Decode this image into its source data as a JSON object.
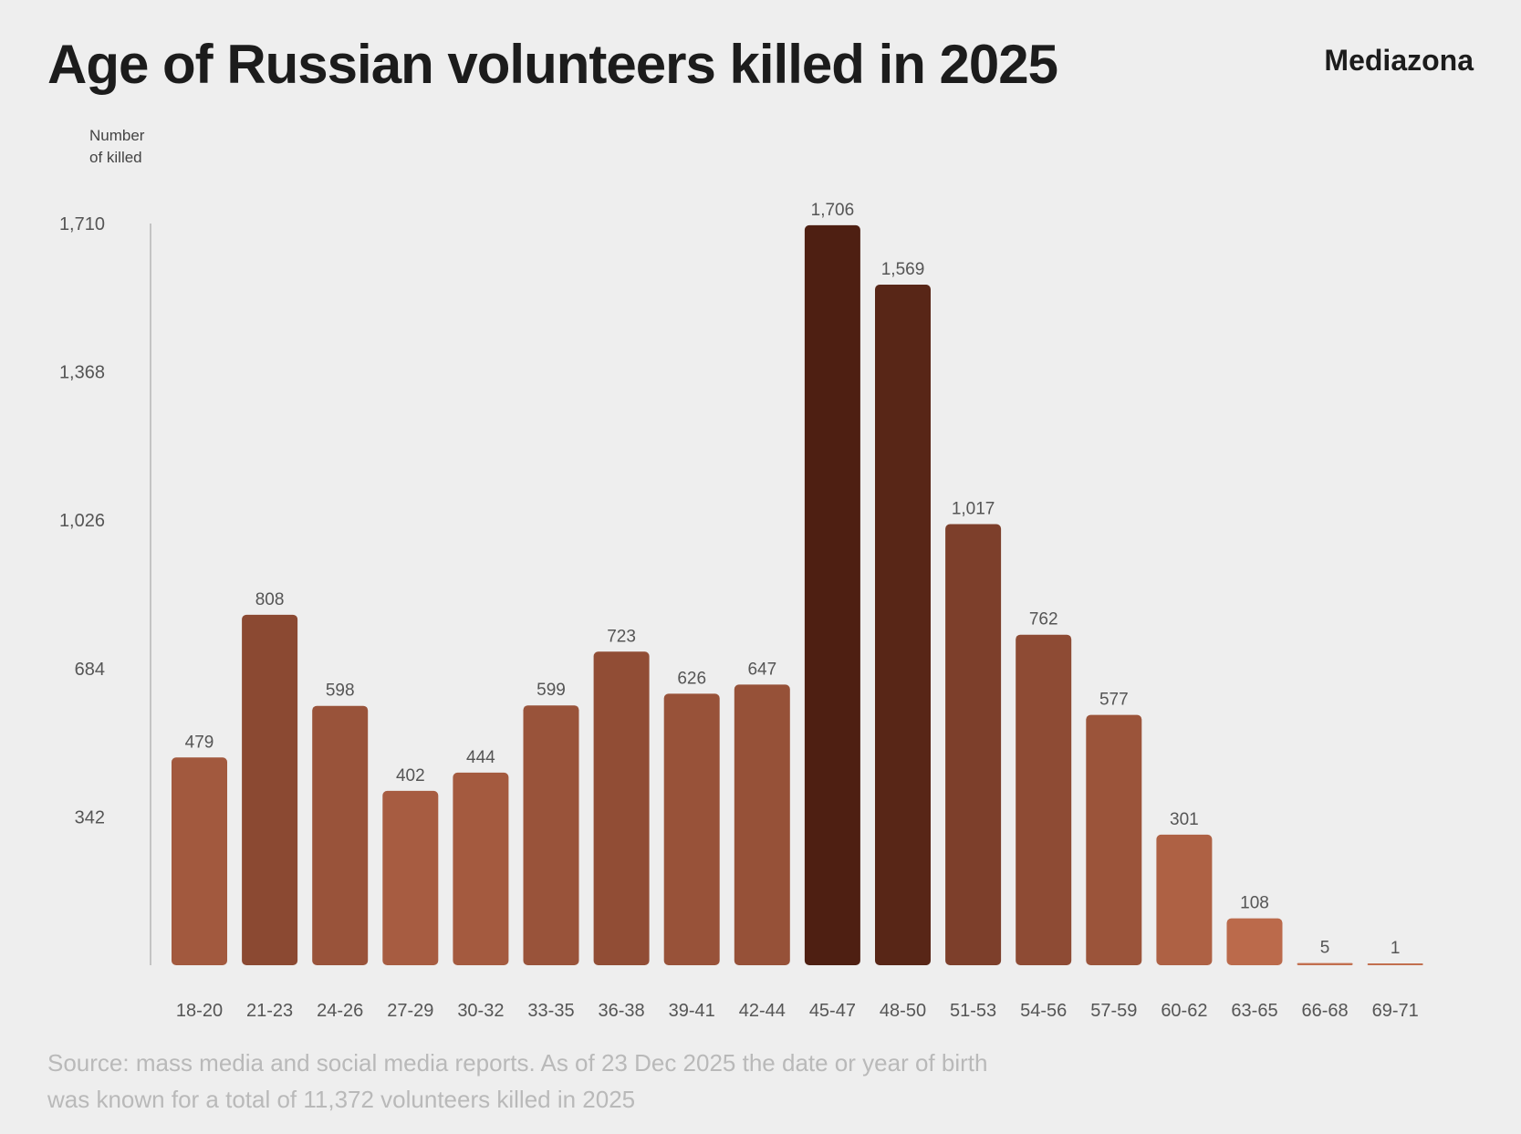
{
  "title": "Age of Russian volunteers killed in 2025",
  "brand": "Mediazona",
  "y_axis_label": [
    "Number",
    "of killed"
  ],
  "source_lines": [
    "Source: mass media and social media reports. As of 23 Dec 2025 the date or year of birth",
    "was known for a total of 11,372 volunteers killed in 2025"
  ],
  "colors": {
    "background": "#eeeeee",
    "bar_light": "#c26f4f",
    "bar_dark": "#4e1f12"
  },
  "chart_data": {
    "type": "bar",
    "title": "Age of Russian volunteers killed in 2025",
    "xlabel": "",
    "ylabel": "Number of killed",
    "ylim": [
      0,
      1710
    ],
    "yticks": [
      342,
      684,
      1026,
      1368,
      1710
    ],
    "ytick_labels": [
      "342",
      "684",
      "1,026",
      "1,368",
      "1,710"
    ],
    "categories": [
      "18-20",
      "21-23",
      "24-26",
      "27-29",
      "30-32",
      "33-35",
      "36-38",
      "39-41",
      "42-44",
      "45-47",
      "48-50",
      "51-53",
      "54-56",
      "57-59",
      "60-62",
      "63-65",
      "66-68",
      "69-71"
    ],
    "values": [
      479,
      808,
      598,
      402,
      444,
      599,
      723,
      626,
      647,
      1706,
      1569,
      1017,
      762,
      577,
      301,
      108,
      5,
      1
    ],
    "value_labels": [
      "479",
      "808",
      "598",
      "402",
      "444",
      "599",
      "723",
      "626",
      "647",
      "1,706",
      "1,569",
      "1,017",
      "762",
      "577",
      "301",
      "108",
      "5",
      "1"
    ],
    "grid": false
  }
}
